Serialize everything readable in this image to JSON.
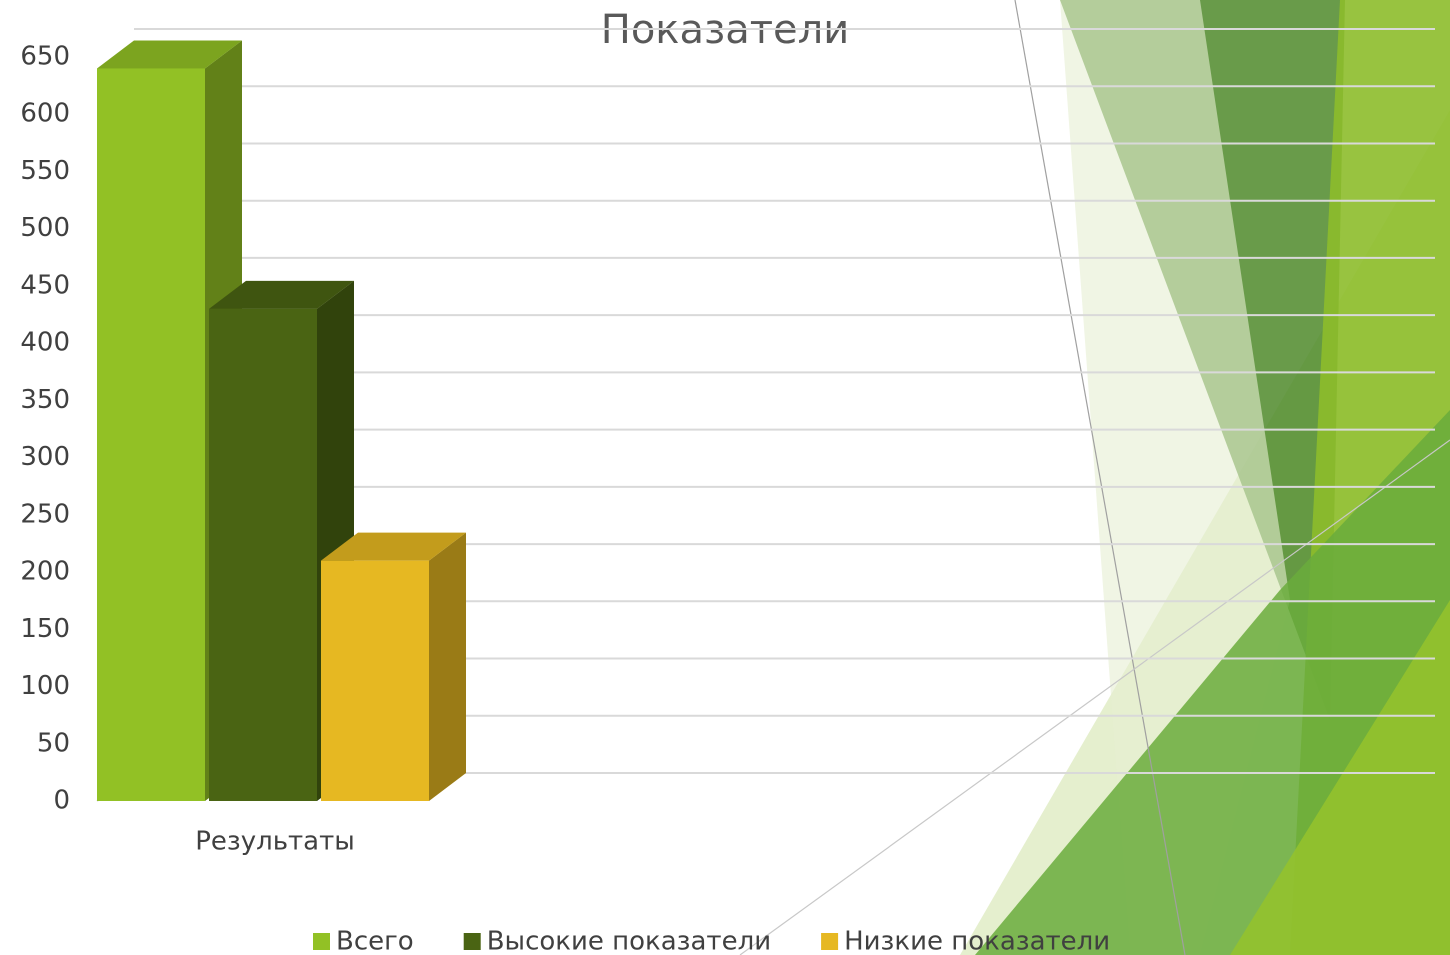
{
  "chart_data": {
    "type": "bar",
    "title": "Показатели",
    "categories": [
      "Результаты"
    ],
    "series": [
      {
        "name": "Всего",
        "color": "#92c125",
        "values": [
          640
        ]
      },
      {
        "name": "Высокие показатели",
        "color": "#4a6413",
        "values": [
          430
        ]
      },
      {
        "name": "Низкие показатели",
        "color": "#e6b822",
        "values": [
          210
        ]
      }
    ],
    "ylim": [
      0,
      650
    ],
    "yticks": [
      0,
      50,
      100,
      150,
      200,
      250,
      300,
      350,
      400,
      450,
      500,
      550,
      600,
      650
    ],
    "grid": true,
    "legend": "bottom"
  }
}
